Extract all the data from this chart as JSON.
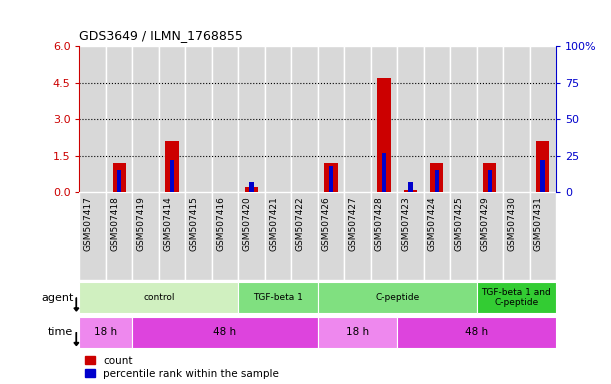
{
  "title": "GDS3649 / ILMN_1768855",
  "samples": [
    "GSM507417",
    "GSM507418",
    "GSM507419",
    "GSM507414",
    "GSM507415",
    "GSM507416",
    "GSM507420",
    "GSM507421",
    "GSM507422",
    "GSM507426",
    "GSM507427",
    "GSM507428",
    "GSM507423",
    "GSM507424",
    "GSM507425",
    "GSM507429",
    "GSM507430",
    "GSM507431"
  ],
  "count_values": [
    0,
    1.2,
    0,
    2.1,
    0,
    0,
    0.2,
    0,
    0,
    1.2,
    0,
    4.7,
    0.1,
    1.2,
    0,
    1.2,
    0,
    2.1
  ],
  "pct_display": [
    0,
    15,
    0,
    22,
    0,
    0,
    7,
    0,
    0,
    18,
    0,
    27,
    7,
    15,
    0,
    15,
    0,
    22
  ],
  "ylim_left": [
    0,
    6
  ],
  "ylim_right": [
    0,
    100
  ],
  "yticks_left": [
    0,
    1.5,
    3.0,
    4.5,
    6.0
  ],
  "yticks_right": [
    0,
    25,
    50,
    75,
    100
  ],
  "agent_groups": [
    {
      "label": "control",
      "start": 0,
      "end": 5,
      "color": "#d0f0c0"
    },
    {
      "label": "TGF-beta 1",
      "start": 6,
      "end": 8,
      "color": "#80e080"
    },
    {
      "label": "C-peptide",
      "start": 9,
      "end": 14,
      "color": "#80e080"
    },
    {
      "label": "TGF-beta 1 and\nC-peptide",
      "start": 15,
      "end": 17,
      "color": "#33cc33"
    }
  ],
  "time_groups": [
    {
      "label": "18 h",
      "start": 0,
      "end": 1,
      "color": "#ee88ee"
    },
    {
      "label": "48 h",
      "start": 2,
      "end": 8,
      "color": "#dd44dd"
    },
    {
      "label": "18 h",
      "start": 9,
      "end": 11,
      "color": "#ee88ee"
    },
    {
      "label": "48 h",
      "start": 12,
      "end": 17,
      "color": "#dd44dd"
    }
  ],
  "bar_width": 0.5,
  "count_color": "#cc0000",
  "percentile_color": "#0000cc",
  "bg_color": "#ffffff",
  "tick_color_left": "#cc0000",
  "tick_color_right": "#0000cc",
  "col_bg_color": "#d8d8d8",
  "col_edge_color": "#ffffff"
}
